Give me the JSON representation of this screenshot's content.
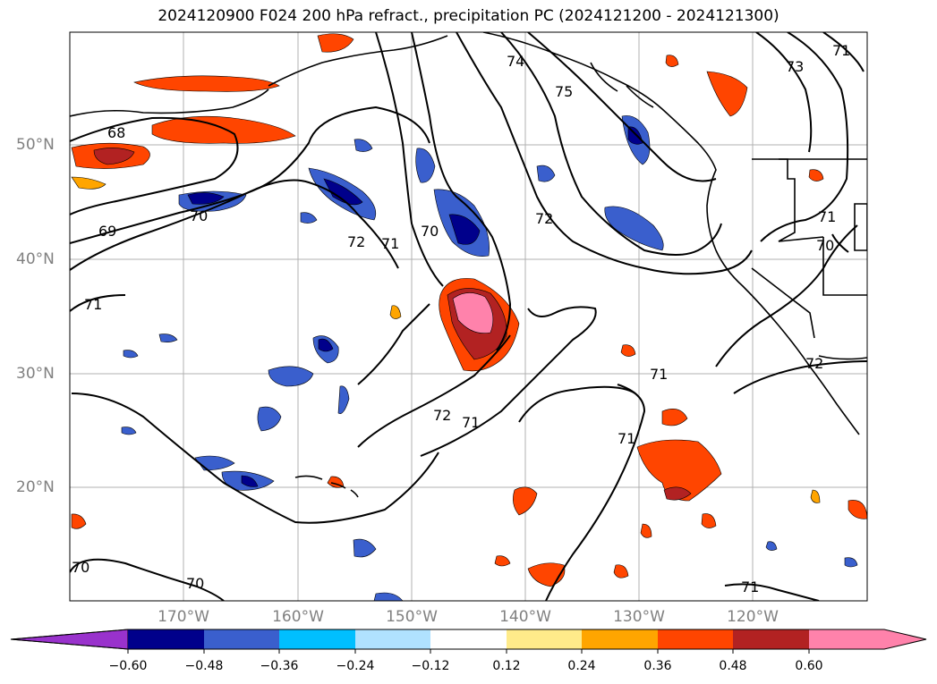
{
  "title": "2024120900 F024 200 hPa refract., precipitation PC (2024121200 - 2024121300)",
  "lat_labels": [
    "50°N",
    "40°N",
    "30°N",
    "20°N"
  ],
  "lon_labels": [
    "170°W",
    "160°W",
    "150°W",
    "140°W",
    "130°W",
    "120°W"
  ],
  "colorbar": {
    "ticks": [
      "−0.60",
      "−0.48",
      "−0.36",
      "−0.24",
      "−0.12",
      "0.12",
      "0.24",
      "0.36",
      "0.48",
      "0.60"
    ],
    "colors": [
      "#9932cc",
      "#00008b",
      "#3a5fcd",
      "#00bfff",
      "#b0e2ff",
      "#ffffff",
      "#ffeb8a",
      "#ffa500",
      "#ff4500",
      "#b22222",
      "#ff82ab"
    ]
  },
  "contour_labels": [
    "68",
    "69",
    "70",
    "70",
    "71",
    "71",
    "72",
    "70",
    "72",
    "72",
    "71",
    "71",
    "74",
    "75",
    "73",
    "71",
    "71",
    "70",
    "72",
    "70",
    "71",
    "71"
  ]
}
